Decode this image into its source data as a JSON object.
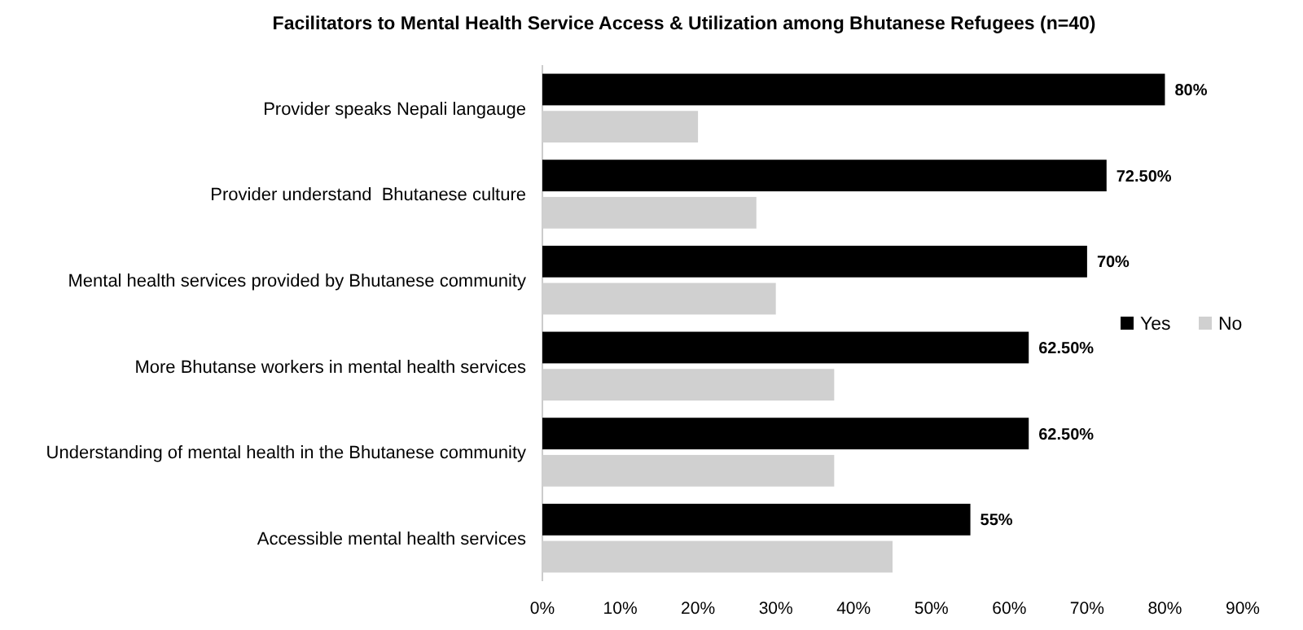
{
  "chart_data": {
    "type": "bar",
    "orientation": "horizontal",
    "title": "Facilitators to Mental Health Service Access & Utilization among Bhutanese Refugees (n=40)",
    "categories": [
      "Provider speaks Nepali langauge",
      "Provider understand  Bhutanese culture",
      "Mental health services provided by Bhutanese community",
      "More Bhutanse workers in mental health services",
      "Understanding of mental health in the Bhutanese community",
      "Accessible mental health services"
    ],
    "series": [
      {
        "name": "Yes",
        "color": "#000000",
        "values": [
          80,
          72.5,
          70,
          62.5,
          62.5,
          55
        ],
        "value_labels": [
          "80%",
          "72.50%",
          "70%",
          "62.50%",
          "62.50%",
          "55%"
        ]
      },
      {
        "name": "No",
        "color": "#d0d0d0",
        "values": [
          20,
          27.5,
          30,
          37.5,
          37.5,
          45
        ]
      }
    ],
    "xlim": [
      0,
      90
    ],
    "xticks": [
      {
        "value": 0,
        "label": "0%"
      },
      {
        "value": 10,
        "label": "10%"
      },
      {
        "value": 20,
        "label": "20%"
      },
      {
        "value": 30,
        "label": "30%"
      },
      {
        "value": 40,
        "label": "40%"
      },
      {
        "value": 50,
        "label": "50%"
      },
      {
        "value": 60,
        "label": "60%"
      },
      {
        "value": 70,
        "label": "70%"
      },
      {
        "value": 80,
        "label": "80%"
      },
      {
        "value": 90,
        "label": "90%"
      }
    ],
    "legend": "right",
    "grid": false
  }
}
